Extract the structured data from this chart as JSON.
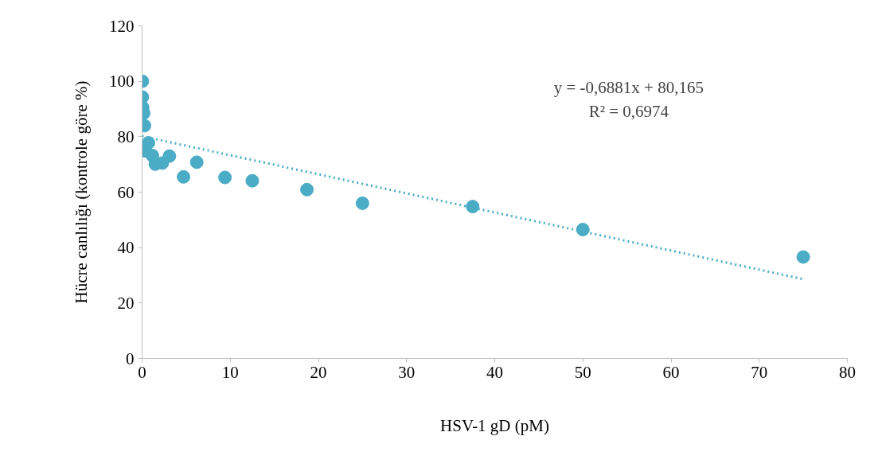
{
  "chart_data": {
    "type": "scatter",
    "xlabel": "HSV-1 gD (pM)",
    "ylabel": "Hücre canlılığı (kontrole göre %)",
    "xlim": [
      0,
      80
    ],
    "xticks": [
      0,
      10,
      20,
      30,
      40,
      50,
      60,
      70,
      80
    ],
    "ylim": [
      0,
      120
    ],
    "yticks": [
      0,
      20,
      40,
      60,
      80,
      100,
      120
    ],
    "grid": false,
    "marker": "circle",
    "annotations": [
      "y = -0,6881x + 80,165",
      "R² = 0,6974"
    ],
    "series": [
      {
        "color": "#4bacc6",
        "x": [
          0.03,
          0.03,
          0.07,
          0.18,
          0.27,
          0.72,
          0.33,
          1.17,
          1.5,
          2.3,
          3.1,
          4.7,
          6.2,
          9.4,
          12.5,
          18.7,
          25,
          37.5,
          50,
          75
        ],
        "values": [
          100.0,
          94.3,
          90.6,
          88.5,
          84.0,
          77.8,
          74.9,
          73.2,
          70.1,
          70.5,
          73.0,
          65.5,
          70.8,
          65.3,
          64.1,
          60.9,
          56.0,
          54.8,
          46.5,
          36.6
        ]
      },
      {
        "type": "line",
        "line_style": "dotted",
        "marker": "none",
        "color": "#4bacc6",
        "x": [
          0,
          75
        ],
        "values": [
          80.2,
          28.6
        ]
      }
    ]
  }
}
